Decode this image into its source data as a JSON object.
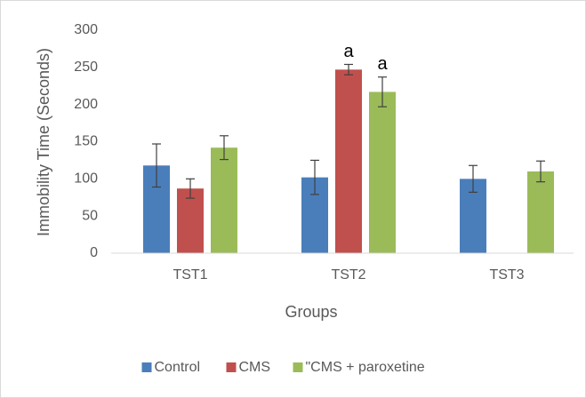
{
  "chart_data": {
    "type": "bar",
    "y_label": "Immobility Time (Seconds)",
    "x_label": "Groups",
    "categories": [
      "TST1",
      "TST2",
      "TST3"
    ],
    "series": [
      {
        "name": "Control",
        "color": "#4a7ebb",
        "values": [
          118,
          102,
          100
        ],
        "errors": [
          29,
          23,
          18
        ]
      },
      {
        "name": "CMS",
        "color": "#c0504d",
        "values": [
          87,
          247,
          0
        ],
        "errors": [
          13,
          7,
          null
        ]
      },
      {
        "name": "\"CMS + paroxetine",
        "color": "#9bbb59",
        "values": [
          142,
          217,
          110
        ],
        "errors": [
          16,
          20,
          14
        ]
      }
    ],
    "annotations": [
      {
        "text": "a",
        "series": 1,
        "category": 1
      },
      {
        "text": "a",
        "series": 2,
        "category": 1
      }
    ],
    "ylim": [
      0,
      300
    ],
    "yticks": [
      0,
      50,
      100,
      150,
      200,
      250,
      300
    ],
    "grid": false,
    "legend": "bottom"
  }
}
